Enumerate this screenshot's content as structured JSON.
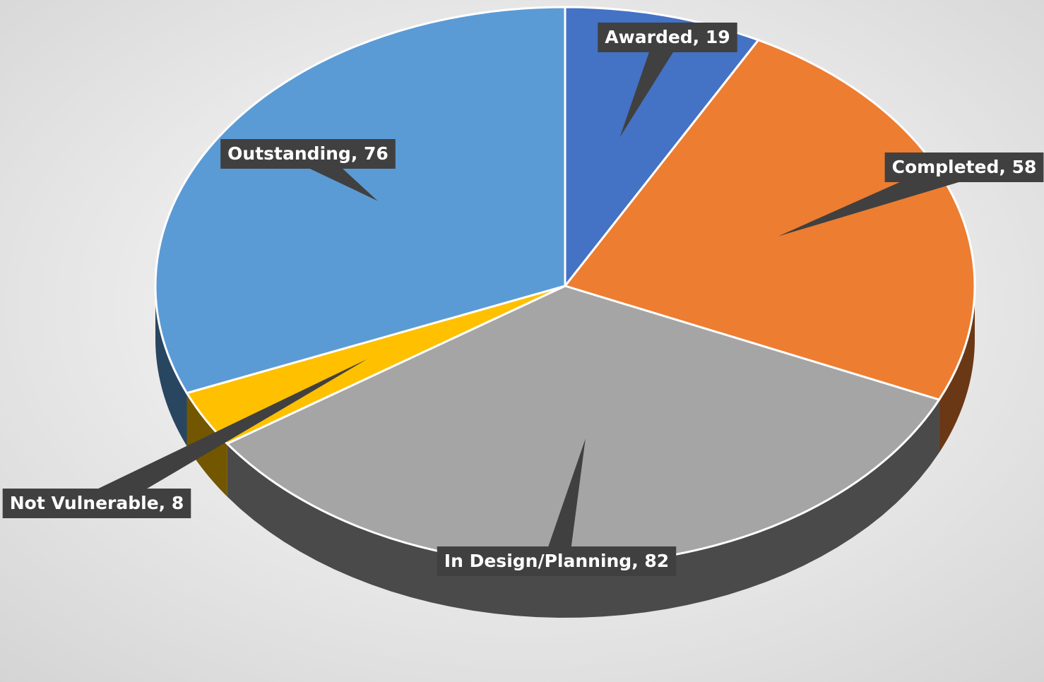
{
  "chart_data": {
    "type": "pie",
    "categories": [
      "Awarded",
      "Completed",
      "In Design/Planning",
      "Not Vulnerable",
      "Outstanding"
    ],
    "values": [
      19,
      58,
      82,
      8,
      76
    ],
    "value_labels": [
      "Awarded, 19",
      "Completed, 58",
      "In Design/Planning, 82",
      "Not Vulnerable, 8",
      "Outstanding, 76"
    ],
    "colors": [
      "#4472c4",
      "#ed7d31",
      "#a5a5a5",
      "#ffc000",
      "#5b9bd5"
    ],
    "three_d": true
  }
}
